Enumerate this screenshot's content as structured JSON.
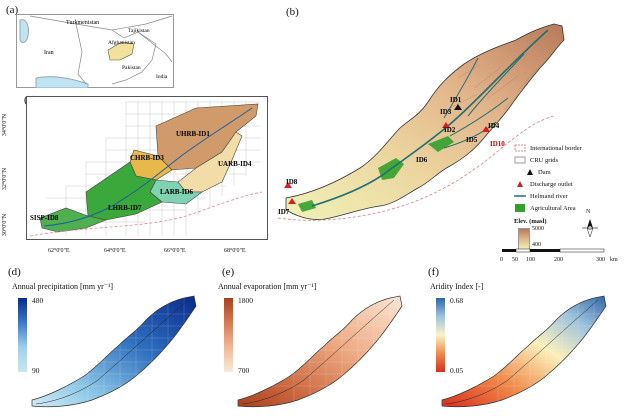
{
  "panels": {
    "a": {
      "label": "(a)",
      "countries": [
        "Turkmenistan",
        "Tajikistan",
        "Afghanistan",
        "Iran",
        "Pakistan",
        "India"
      ]
    },
    "b": {
      "label": "(b)",
      "ids": [
        "ID1",
        "ID2",
        "ID3",
        "ID4",
        "ID5",
        "ID6",
        "ID7",
        "ID8",
        "ID10"
      ],
      "legend": {
        "international_border": "International border",
        "cru_grids": "CRU grids",
        "dam": "Dam",
        "discharge_outlet": "Discharge outlet",
        "helmand_river": "Helmand river",
        "agricultural_area": "Agricultural Area",
        "elev_title": "Elev. (masl)",
        "elev_high": "5000",
        "elev_low": "400"
      },
      "scale": {
        "ticks": [
          "0",
          "50",
          "100",
          "200",
          "300"
        ],
        "unit": "km"
      },
      "north": "N"
    },
    "c": {
      "label": "(c)",
      "basins": [
        "UHRB-ID1",
        "CHRB-ID3",
        "UARB-ID4",
        "LHRB-ID7",
        "LARB-ID6",
        "SISP-ID8"
      ],
      "lat_ticks": [
        "34°0'0\"N",
        "32°0'0\"N",
        "30°0'0\"N"
      ],
      "lon_ticks": [
        "62°0'0\"E",
        "64°0'0\"E",
        "66°0'0\"E",
        "68°0'0\"E"
      ]
    },
    "d": {
      "label": "(d)",
      "title": "Annual precipitation [mm yr⁻¹]",
      "max": "480",
      "min": "90",
      "color_high": "#0a2a8c",
      "color_low": "#c9e6f2"
    },
    "e": {
      "label": "(e)",
      "title": "Annual evaporation [mm yr⁻¹]",
      "max": "1800",
      "min": "700",
      "color_high": "#a8401e",
      "color_low": "#fbe9dc"
    },
    "f": {
      "label": "(f)",
      "title": "Aridity Index [-]",
      "max": "0.68",
      "min": "0.05",
      "color_high": "#2f66a8",
      "color_mid": "#fbf4c8",
      "color_low": "#d7301f"
    }
  }
}
